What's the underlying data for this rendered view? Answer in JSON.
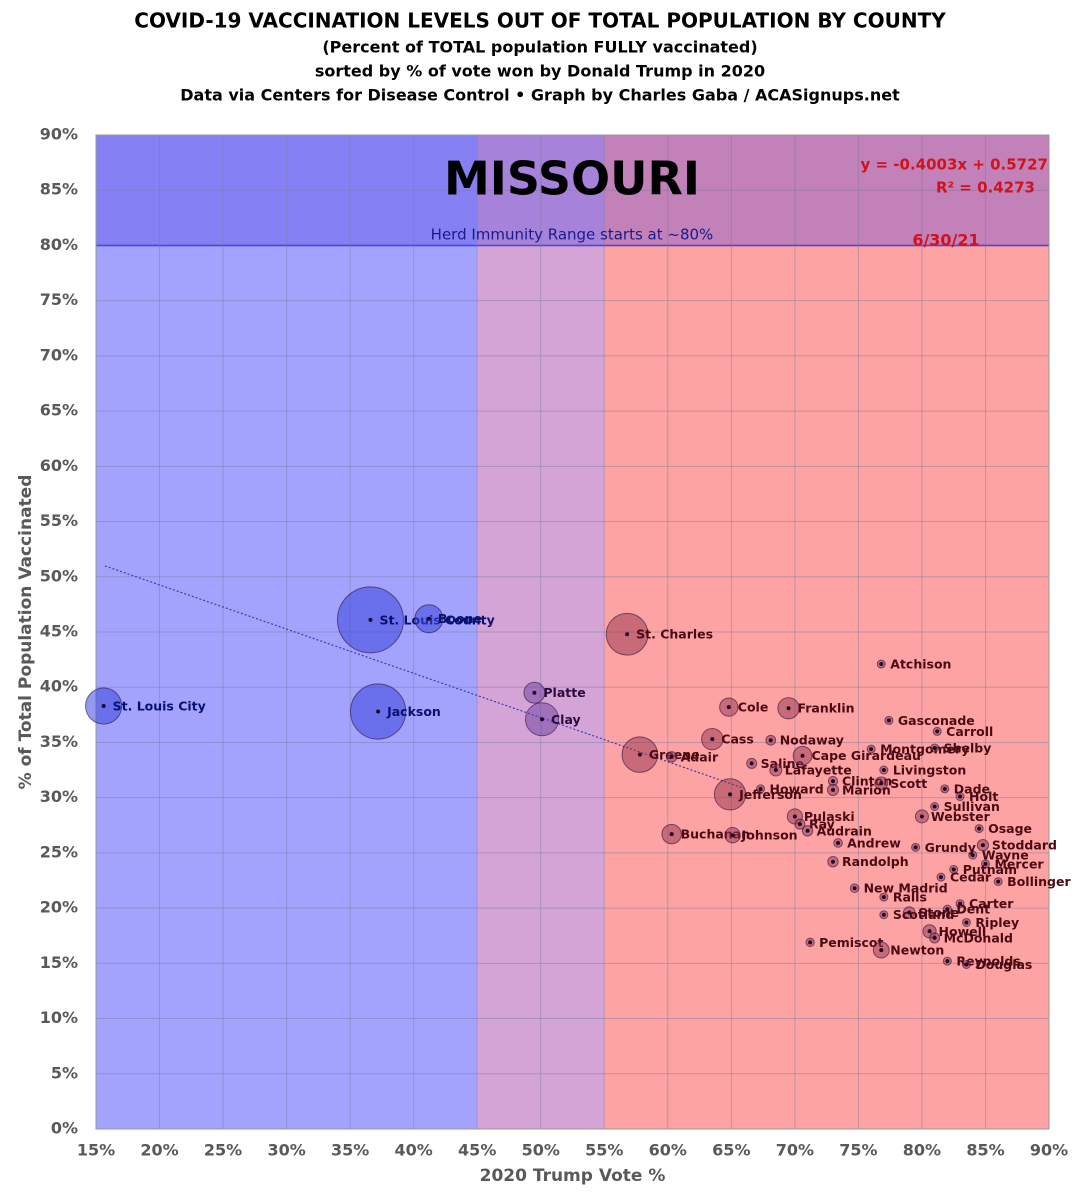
{
  "chart_data": {
    "type": "bubble",
    "title": "COVID-19 VACCINATION LEVELS OUT OF TOTAL POPULATION BY COUNTY",
    "subtitles": [
      "(Percent of TOTAL population FULLY vaccinated)",
      "sorted by % of vote won by Donald Trump in 2020",
      "Data via Centers for Disease Control • Graph by Charles Gaba / ACASignups.net"
    ],
    "state": "MISSOURI",
    "date": "6/30/21",
    "x_label": "2020 Trump Vote %",
    "y_label": "% of Total Population Vaccinated",
    "xlim": [
      15,
      90
    ],
    "ylim": [
      0,
      90
    ],
    "xticks": [
      {
        "value": 15,
        "label": "15%"
      },
      {
        "value": 20,
        "label": "20%"
      },
      {
        "value": 25,
        "label": "25%"
      },
      {
        "value": 30,
        "label": "30%"
      },
      {
        "value": 35,
        "label": "35%"
      },
      {
        "value": 40,
        "label": "40%"
      },
      {
        "value": 45,
        "label": "45%"
      },
      {
        "value": 50,
        "label": "50%"
      },
      {
        "value": 55,
        "label": "55%"
      },
      {
        "value": 60,
        "label": "60%"
      },
      {
        "value": 65,
        "label": "65%"
      },
      {
        "value": 70,
        "label": "70%"
      },
      {
        "value": 75,
        "label": "75%"
      },
      {
        "value": 80,
        "label": "80%"
      },
      {
        "value": 85,
        "label": "85%"
      },
      {
        "value": 90,
        "label": "90%"
      }
    ],
    "yticks": [
      {
        "value": 0,
        "label": "0%"
      },
      {
        "value": 5,
        "label": "5%"
      },
      {
        "value": 10,
        "label": "10%"
      },
      {
        "value": 15,
        "label": "15%"
      },
      {
        "value": 20,
        "label": "20%"
      },
      {
        "value": 25,
        "label": "25%"
      },
      {
        "value": 30,
        "label": "30%"
      },
      {
        "value": 35,
        "label": "35%"
      },
      {
        "value": 40,
        "label": "40%"
      },
      {
        "value": 45,
        "label": "45%"
      },
      {
        "value": 50,
        "label": "50%"
      },
      {
        "value": 55,
        "label": "55%"
      },
      {
        "value": 60,
        "label": "60%"
      },
      {
        "value": 65,
        "label": "65%"
      },
      {
        "value": 70,
        "label": "70%"
      },
      {
        "value": 75,
        "label": "75%"
      },
      {
        "value": 80,
        "label": "80%"
      },
      {
        "value": 85,
        "label": "85%"
      },
      {
        "value": 90,
        "label": "90%"
      }
    ],
    "grid": true,
    "zones": [
      {
        "from": 15,
        "to": 45,
        "color": "#a3a3fd",
        "bubble_color": "rgba(60,70,220,0.55)",
        "text_color": "#0a1070"
      },
      {
        "from": 45,
        "to": 55,
        "color": "#d4a4d6",
        "bubble_color": "rgba(110,60,160,0.5)",
        "text_color": "#2a0a40"
      },
      {
        "from": 55,
        "to": 90,
        "color": "#fda3a3",
        "bubble_color": "rgba(150,50,80,0.5)",
        "text_color": "#4a0a14"
      }
    ],
    "herd_band": {
      "label": "Herd Immunity Range starts at ~80%",
      "from": 80,
      "to": 90,
      "color": "rgba(70,60,230,0.32)"
    },
    "trendline": {
      "equation": "y = -0.4003x + 0.5727",
      "r2": "R² = 0.4273",
      "slope": -0.4003,
      "intercept": 0.5727,
      "x": [
        15.7,
        66
      ]
    },
    "labels": [
      "St. Louis City",
      "St. Louis County",
      "Boone",
      "Jackson",
      "Platte",
      "Clay",
      "St. Charles",
      "Greene",
      "Adair",
      "Buchanan",
      "Johnson",
      "Cass",
      "Cole",
      "Franklin",
      "Nodaway",
      "Atchison",
      "Gasconade",
      "Carroll",
      "Saline",
      "Jefferson",
      "Cape Girardeau",
      "Clinton",
      "Livingston",
      "Montgomery",
      "Shelby",
      "Scott",
      "Dade",
      "Holt",
      "Marion",
      "Sullivan",
      "Howard",
      "Pulaski",
      "Ray",
      "Webster",
      "Osage",
      "Audrain",
      "Andrew",
      "Stoddard",
      "Wayne",
      "Mercer",
      "Randolph",
      "Putnam",
      "Bollinger",
      "New Madrid",
      "Ralls",
      "Carter",
      "Dent",
      "Stone",
      "Ripley",
      "Howell",
      "McDonald",
      "Pemiscot",
      "Newton",
      "Reynolds",
      "Douglas",
      "Scotland",
      "Lafayette",
      "Grundy",
      "Cedar"
    ],
    "x": [
      15.6,
      36.6,
      41.2,
      37.2,
      49.5,
      50.1,
      56.8,
      57.8,
      60.3,
      60.3,
      65.1,
      63.5,
      64.8,
      69.5,
      68.1,
      76.8,
      77.4,
      81.2,
      66.6,
      64.9,
      70.6,
      73.0,
      77.0,
      76.0,
      81.0,
      76.8,
      81.8,
      83.0,
      73.0,
      81.0,
      67.3,
      70.0,
      70.4,
      80.0,
      84.5,
      71.0,
      73.4,
      84.8,
      84.0,
      85.0,
      73.0,
      82.5,
      86.0,
      74.7,
      77.0,
      83.0,
      82.0,
      79.0,
      83.5,
      80.6,
      81.0,
      71.2,
      76.8,
      82.0,
      83.5,
      77.0,
      68.5,
      79.5,
      81.5
    ],
    "y": [
      38.3,
      46.1,
      46.2,
      37.8,
      39.5,
      37.1,
      44.8,
      33.9,
      33.7,
      26.7,
      26.6,
      35.3,
      38.2,
      38.1,
      35.2,
      42.1,
      37.0,
      36.0,
      33.1,
      30.3,
      33.8,
      31.5,
      32.5,
      34.4,
      34.5,
      31.3,
      30.8,
      30.1,
      30.7,
      29.2,
      30.8,
      28.3,
      27.6,
      28.3,
      27.2,
      27.0,
      25.9,
      25.7,
      24.8,
      24.0,
      24.2,
      23.5,
      22.4,
      21.8,
      21.0,
      20.4,
      19.9,
      19.6,
      18.7,
      17.9,
      17.3,
      16.9,
      16.2,
      15.2,
      14.9,
      19.4,
      32.5,
      25.5,
      22.8
    ],
    "sizes": [
      300,
      1000,
      180,
      700,
      100,
      250,
      400,
      290,
      25,
      87,
      54,
      105,
      77,
      104,
      22,
      5,
      15,
      9,
      23,
      225,
      80,
      20,
      15,
      11,
      6,
      38,
      8,
      4,
      28,
      6,
      10,
      53,
      23,
      39,
      13,
      25,
      17,
      29,
      13,
      4,
      25,
      5,
      12,
      17,
      10,
      6,
      15,
      31,
      11,
      40,
      23,
      16,
      58,
      6,
      12,
      5,
      33,
      10,
      14
    ]
  }
}
